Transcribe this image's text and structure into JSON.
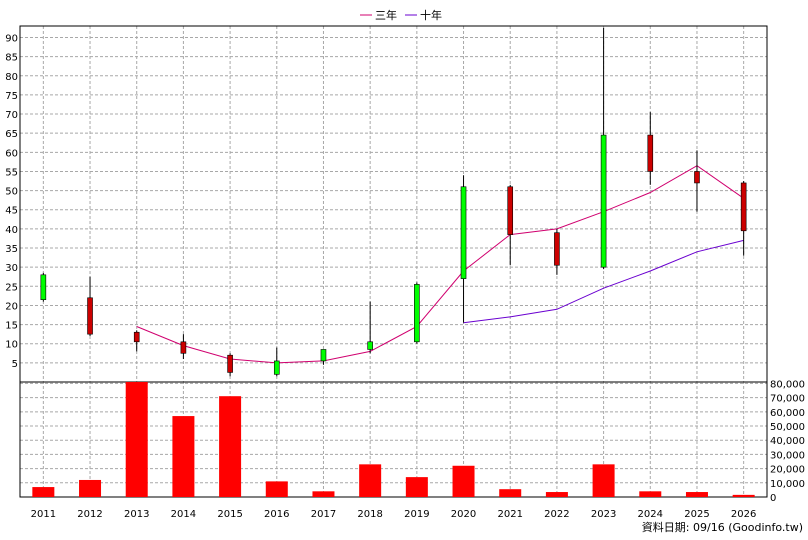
{
  "chart_data": {
    "type": "candlestick-with-volume",
    "legend": [
      {
        "name": "三年",
        "color": "#d0006f"
      },
      {
        "name": "十年",
        "color": "#6a00d0"
      }
    ],
    "categories": [
      "2011",
      "2012",
      "2013",
      "2014",
      "2015",
      "2016",
      "2017",
      "2018",
      "2019",
      "2020",
      "2021",
      "2022",
      "2023",
      "2024",
      "2025",
      "2026"
    ],
    "price_axis": {
      "ticks": [
        5,
        10,
        15,
        20,
        25,
        30,
        35,
        40,
        45,
        50,
        55,
        60,
        65,
        70,
        75,
        80,
        85,
        90
      ],
      "range": [
        0,
        93
      ]
    },
    "volume_axis": {
      "ticks": [
        0,
        10000,
        20000,
        30000,
        40000,
        50000,
        60000,
        70000,
        80000
      ],
      "tick_labels": [
        "0",
        "10,000",
        "20,000",
        "30,000",
        "40,000",
        "50,000",
        "60,000",
        "70,000",
        "80,000"
      ],
      "range": [
        0,
        81000
      ]
    },
    "candles": [
      {
        "year": "2011",
        "open": 21.5,
        "close": 28,
        "high": 28.5,
        "low": 21
      },
      {
        "year": "2012",
        "open": 22,
        "close": 12.5,
        "high": 27.5,
        "low": 12
      },
      {
        "year": "2013",
        "open": 13,
        "close": 10.5,
        "high": 13.5,
        "low": 8
      },
      {
        "year": "2014",
        "open": 10.5,
        "close": 7.5,
        "high": 12.5,
        "low": 6
      },
      {
        "year": "2015",
        "open": 7,
        "close": 2.5,
        "high": 7.5,
        "low": 1.5
      },
      {
        "year": "2016",
        "open": 2,
        "close": 5.5,
        "high": 9,
        "low": 1.5
      },
      {
        "year": "2017",
        "open": 5.5,
        "close": 8.5,
        "high": 8.5,
        "low": 4.5
      },
      {
        "year": "2018",
        "open": 8.5,
        "close": 10.5,
        "high": 21,
        "low": 7.5
      },
      {
        "year": "2019",
        "open": 10.5,
        "close": 25.5,
        "high": 26,
        "low": 10
      },
      {
        "year": "2020",
        "open": 27,
        "close": 51,
        "high": 54,
        "low": 15.5
      },
      {
        "year": "2021",
        "open": 51,
        "close": 38.5,
        "high": 51.5,
        "low": 30.5
      },
      {
        "year": "2022",
        "open": 39,
        "close": 30.5,
        "high": 40,
        "low": 28
      },
      {
        "year": "2023",
        "open": 30,
        "close": 64.5,
        "high": 92.5,
        "low": 29.5
      },
      {
        "year": "2024",
        "open": 64.5,
        "close": 55,
        "high": 70.5,
        "low": 51.5
      },
      {
        "year": "2025",
        "open": 55,
        "close": 52,
        "high": 60.5,
        "low": 44.5
      },
      {
        "year": "2026",
        "open": 52,
        "close": 39.5,
        "high": 52.5,
        "low": 33
      }
    ],
    "series": [
      {
        "name": "三年",
        "x": [
          "2013",
          "2014",
          "2015",
          "2016",
          "2017",
          "2018",
          "2019",
          "2020",
          "2021",
          "2022",
          "2023",
          "2024",
          "2025",
          "2026"
        ],
        "values": [
          14.5,
          9.5,
          6,
          5,
          5.5,
          8,
          14.5,
          29,
          38.5,
          40,
          44.5,
          49.5,
          56.5,
          48
        ]
      },
      {
        "name": "十年",
        "x": [
          "2020",
          "2021",
          "2022",
          "2023",
          "2024",
          "2025",
          "2026"
        ],
        "values": [
          15.5,
          17,
          19,
          24.5,
          29,
          34,
          37
        ]
      }
    ],
    "volume": [
      7000,
      12000,
      81000,
      57000,
      71000,
      11000,
      4000,
      23000,
      14000,
      22000,
      5500,
      3500,
      23000,
      4000,
      3500,
      1500
    ],
    "grid": true,
    "legend_position": "top-center"
  },
  "footer": {
    "source": "資料日期: 09/16 (Goodinfo.tw)"
  }
}
